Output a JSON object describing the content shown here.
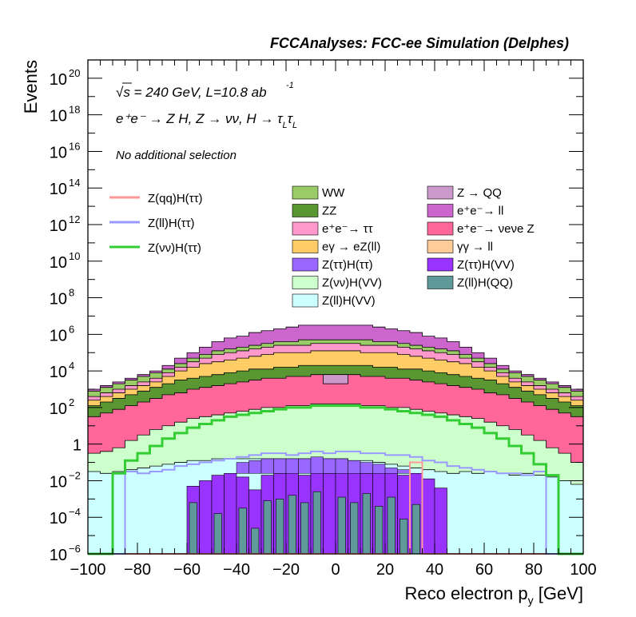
{
  "header": "FCCAnalyses: FCC-ee Simulation (Delphes)",
  "annotations": {
    "line1_energy": "√s = 240 GeV, L=10.8 ab",
    "line1_sup": "-1",
    "line2_process": "e⁺e⁻ → Z H, Z → νν, H → τ",
    "line2_sub1": "L",
    "line2_mid": "τ",
    "line2_sub2": "L",
    "line3_selection": "No additional selection"
  },
  "colors": {
    "WW": "#99cc66",
    "ZZ": "#5a9632",
    "ee_tautau": "#ff99cc",
    "egamma_eZll": "#ffcc66",
    "Ztautau_Htautau": "#9966ff",
    "Znunu_HVV": "#ccffcc",
    "Zll_HVV": "#ccffff",
    "Z_QQ": "#cc99cc",
    "ee_ll": "#cc66cc",
    "ee_nunuZ": "#ff6699",
    "gammagamma_ll": "#ffcc99",
    "Ztautau_HVV": "#9933ff",
    "Zll_HQQ": "#5f9999",
    "sig_qq": "#ff9999",
    "sig_ll": "#9999ff",
    "sig_nunu": "#33cc33"
  },
  "chart_data": {
    "type": "area",
    "title": "FCCAnalyses: FCC-ee Simulation (Delphes)",
    "xlabel": "Reco electron p",
    "xlabel_sub": "y",
    "xlabel_unit": "[GeV]",
    "ylabel": "Events",
    "xlim": [
      -100,
      100
    ],
    "ylim": [
      1e-06,
      1e+21
    ],
    "yscale": "log",
    "x_ticks": [
      "−100",
      "−80",
      "−60",
      "−40",
      "−20",
      "0",
      "20",
      "40",
      "60",
      "80",
      "100"
    ],
    "y_ticks": [
      {
        "base": "10",
        "exp": "−6"
      },
      {
        "base": "10",
        "exp": "−4"
      },
      {
        "base": "10",
        "exp": "−2"
      },
      {
        "base": "1",
        "exp": ""
      },
      {
        "base": "10",
        "exp": "2"
      },
      {
        "base": "10",
        "exp": "4"
      },
      {
        "base": "10",
        "exp": "6"
      },
      {
        "base": "10",
        "exp": "8"
      },
      {
        "base": "10",
        "exp": "10"
      },
      {
        "base": "10",
        "exp": "12"
      },
      {
        "base": "10",
        "exp": "14"
      },
      {
        "base": "10",
        "exp": "16"
      },
      {
        "base": "10",
        "exp": "18"
      },
      {
        "base": "10",
        "exp": "20"
      }
    ],
    "stack_cumulative_log10": {
      "Zll_HVV": [
        -1.5,
        -1.6,
        -1.5,
        -1.4,
        -1.3,
        -1.2,
        -1.1,
        -1.0,
        -0.9,
        -0.9,
        -0.8,
        -0.8,
        -0.8,
        -0.8,
        -0.8,
        -0.8,
        -0.8,
        -0.8,
        -0.8,
        -0.8,
        -0.8,
        -0.9,
        -0.9,
        -1.0,
        -1.1,
        -1.2,
        -1.3,
        -1.4,
        -1.5,
        -1.6,
        -1.5,
        -1.6,
        -1.5,
        -1.6,
        -1.7,
        -1.6,
        -1.7,
        -1.8,
        -2.0,
        -2.2
      ],
      "Znunu_HVV": [
        -0.5,
        -0.4,
        -0.2,
        0.2,
        0.5,
        0.8,
        1.0,
        1.2,
        1.4,
        1.5,
        1.6,
        1.7,
        1.8,
        1.9,
        2.0,
        2.0,
        2.1,
        2.1,
        2.2,
        2.2,
        2.2,
        2.2,
        2.1,
        2.1,
        2.0,
        2.0,
        1.9,
        1.8,
        1.7,
        1.6,
        1.5,
        1.4,
        1.2,
        1.0,
        0.8,
        0.5,
        0.2,
        -0.2,
        -0.5,
        -1.0
      ],
      "ee_nunuZ": [
        1.5,
        1.7,
        1.9,
        2.1,
        2.3,
        2.5,
        2.7,
        2.8,
        3.0,
        3.1,
        3.2,
        3.3,
        3.4,
        3.5,
        3.6,
        3.6,
        3.7,
        3.7,
        3.8,
        3.8,
        3.8,
        3.8,
        3.7,
        3.7,
        3.6,
        3.6,
        3.5,
        3.4,
        3.3,
        3.2,
        3.1,
        3.0,
        2.8,
        2.7,
        2.5,
        2.3,
        2.1,
        1.9,
        1.7,
        1.5
      ],
      "ZZ": [
        2.1,
        2.3,
        2.5,
        2.7,
        2.9,
        3.1,
        3.3,
        3.5,
        3.6,
        3.7,
        3.8,
        3.9,
        4.0,
        4.1,
        4.1,
        4.2,
        4.2,
        4.3,
        4.3,
        4.3,
        4.3,
        4.3,
        4.3,
        4.2,
        4.2,
        4.1,
        4.1,
        4.0,
        3.9,
        3.8,
        3.7,
        3.6,
        3.5,
        3.3,
        3.1,
        2.9,
        2.7,
        2.5,
        2.3,
        2.1
      ],
      "egamma_eZll": [
        2.4,
        2.6,
        2.8,
        3.0,
        3.2,
        3.4,
        3.7,
        4.0,
        4.2,
        4.4,
        4.5,
        4.6,
        4.7,
        4.8,
        4.9,
        5.0,
        5.0,
        5.0,
        5.1,
        5.1,
        5.1,
        5.1,
        5.0,
        5.0,
        5.0,
        4.9,
        4.8,
        4.7,
        4.6,
        4.5,
        4.4,
        4.2,
        4.0,
        3.7,
        3.4,
        3.2,
        3.0,
        2.8,
        2.6,
        2.4
      ],
      "ee_tautau": [
        2.6,
        2.8,
        3.0,
        3.2,
        3.4,
        3.6,
        3.9,
        4.2,
        4.5,
        4.7,
        4.9,
        5.0,
        5.1,
        5.2,
        5.3,
        5.4,
        5.4,
        5.4,
        5.5,
        5.5,
        5.5,
        5.5,
        5.4,
        5.4,
        5.4,
        5.3,
        5.2,
        5.1,
        5.0,
        4.9,
        4.7,
        4.5,
        4.2,
        3.9,
        3.6,
        3.4,
        3.2,
        3.0,
        2.8,
        2.6
      ],
      "WW": [
        2.9,
        3.1,
        3.3,
        3.5,
        3.7,
        3.9,
        4.1,
        4.4,
        4.7,
        4.9,
        5.1,
        5.2,
        5.3,
        5.4,
        5.5,
        5.6,
        5.6,
        5.7,
        5.7,
        5.7,
        5.7,
        5.7,
        5.7,
        5.6,
        5.6,
        5.5,
        5.4,
        5.3,
        5.2,
        5.1,
        4.9,
        4.7,
        4.4,
        4.1,
        3.9,
        3.7,
        3.5,
        3.3,
        3.1,
        2.9
      ],
      "ee_ll": [
        3.0,
        3.2,
        3.4,
        3.6,
        3.8,
        4.0,
        4.3,
        4.7,
        5.0,
        5.3,
        5.6,
        5.8,
        5.9,
        6.1,
        6.2,
        6.3,
        6.4,
        6.5,
        6.5,
        6.5,
        6.5,
        6.5,
        6.5,
        6.4,
        6.3,
        6.2,
        6.1,
        5.9,
        5.8,
        5.6,
        5.3,
        5.0,
        4.7,
        4.3,
        4.0,
        3.8,
        3.6,
        3.4,
        3.2,
        3.0
      ]
    },
    "series": [
      {
        "name": "Z(qq)H(ττ)",
        "log10_values": [
          -6,
          -6,
          -6,
          -6,
          -6,
          -6,
          -6,
          -6,
          -6,
          -6,
          -6,
          -6,
          -6,
          -6,
          -6,
          -6,
          -6,
          -6,
          -6,
          -6,
          -6,
          -6,
          -6,
          -6,
          -6,
          -6,
          -1.0,
          -6,
          -6,
          -6,
          -6,
          -6,
          -6,
          -6,
          -6,
          -6,
          -6,
          -6,
          -6,
          -6
        ]
      },
      {
        "name": "Z(ll)H(ττ)",
        "log10_values": [
          -6,
          -6,
          -6,
          -1.5,
          -1.6,
          -1.5,
          -1.4,
          -1.2,
          -1.1,
          -1.0,
          -0.9,
          -0.8,
          -0.7,
          -0.6,
          -0.5,
          -0.5,
          -0.6,
          -0.5,
          -0.4,
          -0.5,
          -0.4,
          -0.4,
          -0.5,
          -0.5,
          -0.6,
          -0.6,
          -0.7,
          -0.9,
          -1.0,
          -1.2,
          -1.3,
          -1.4,
          -1.5,
          -1.6,
          -1.6,
          -1.7,
          -1.5,
          -6,
          -6,
          -6
        ]
      },
      {
        "name": "Z(νν)H(ττ)",
        "log10_values": [
          -6,
          -6,
          -1.6,
          -0.9,
          -0.5,
          -0.1,
          0.3,
          0.6,
          0.9,
          1.1,
          1.3,
          1.5,
          1.6,
          1.7,
          1.8,
          1.9,
          2.0,
          2.0,
          2.1,
          2.1,
          2.1,
          2.1,
          2.0,
          2.0,
          1.9,
          1.8,
          1.7,
          1.6,
          1.5,
          1.3,
          1.1,
          0.9,
          0.6,
          0.3,
          -0.1,
          -0.5,
          -1.1,
          -1.7,
          -6,
          -6
        ]
      }
    ],
    "legend": {
      "placement": "top",
      "left": [
        "Z(qq)H(ττ)",
        "Z(ll)H(ττ)",
        "Z(νν)H(ττ)"
      ],
      "middle": [
        "WW",
        "ZZ",
        "e⁺e⁻→ ττ",
        "eγ → eZ(ll)",
        "Z(ττ)H(ττ)",
        "Z(νν)H(VV)",
        "Z(ll)H(VV)"
      ],
      "right": [
        "Z → QQ",
        "e⁺e⁻→ ll",
        "e⁺e⁻→ νeνe Z",
        "γγ → ll",
        "Z(ττ)H(VV)",
        "Z(ll)H(QQ)"
      ]
    }
  }
}
